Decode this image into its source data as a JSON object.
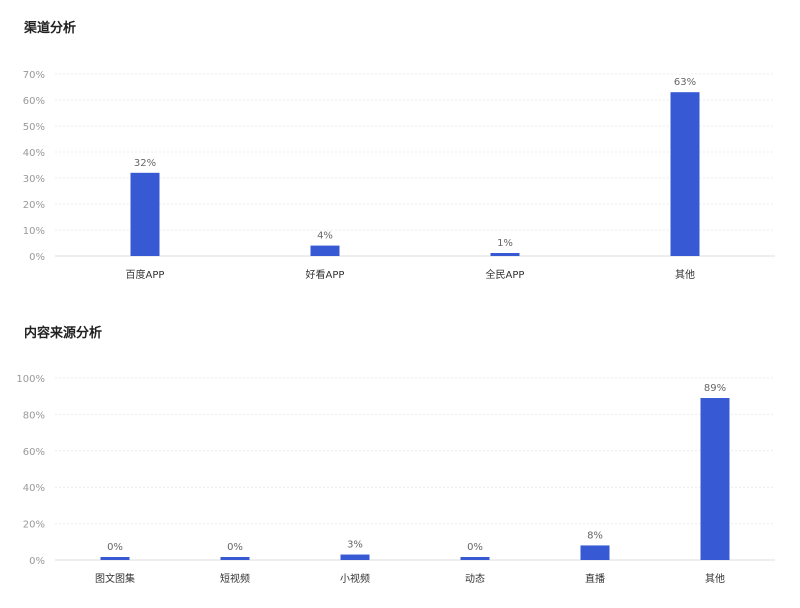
{
  "sections": {
    "channel_title": "渠道分析",
    "content_title": "内容来源分析"
  },
  "theme": {
    "bar_color": "#3759d3",
    "grid_color": "#ececec",
    "tick_color": "#999999",
    "label_color": "#333333"
  },
  "chart_data": [
    {
      "type": "bar",
      "title": "渠道分析",
      "categories": [
        "百度APP",
        "好看APP",
        "全民APP",
        "其他"
      ],
      "values": [
        32,
        4,
        1,
        63
      ],
      "value_labels": [
        "32%",
        "4%",
        "1%",
        "63%"
      ],
      "y_ticks": [
        "0%",
        "10%",
        "20%",
        "30%",
        "40%",
        "50%",
        "60%",
        "70%"
      ],
      "ylim": [
        0,
        70
      ],
      "grid": true
    },
    {
      "type": "bar",
      "title": "内容来源分析",
      "categories": [
        "图文图集",
        "短视频",
        "小视频",
        "动态",
        "直播",
        "其他"
      ],
      "values": [
        0,
        0,
        3,
        0,
        8,
        89
      ],
      "value_labels": [
        "0%",
        "0%",
        "3%",
        "0%",
        "8%",
        "89%"
      ],
      "y_ticks": [
        "0%",
        "20%",
        "40%",
        "60%",
        "80%",
        "100%"
      ],
      "ylim": [
        0,
        100
      ],
      "grid": true
    }
  ]
}
